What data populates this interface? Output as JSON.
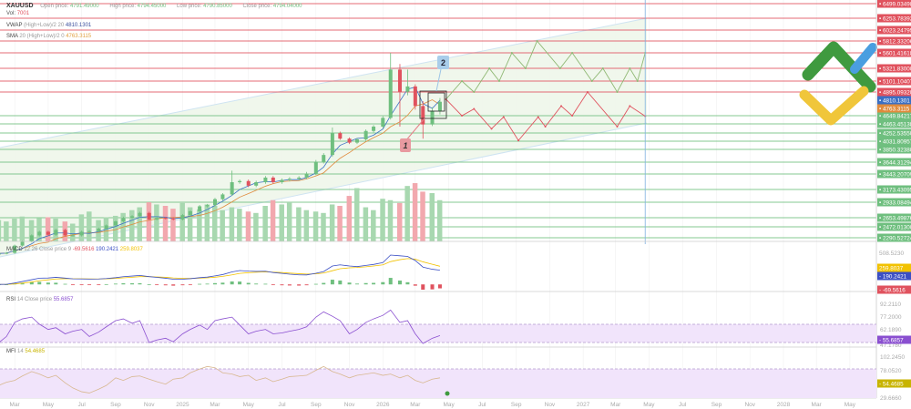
{
  "header": {
    "symbol": "XAUUSD",
    "open_label": "Open price:",
    "open": "4791.49000",
    "high_label": "High price:",
    "high": "4794.45000",
    "low_label": "Low price:",
    "low": "4790.85000",
    "close_label": "Close price:",
    "close": "4794.04000",
    "vol_label": "Vol:",
    "vol": "7001"
  },
  "indicators": {
    "vwap": {
      "name": "VWAP",
      "params": "(High+Low)/2 20",
      "value": "4810.1301",
      "color": "#3a6fc4"
    },
    "sma": {
      "name": "SMA",
      "params": "20 (High+Low)/2 0",
      "value": "4763.3115",
      "color": "#e08a3c"
    },
    "macd": {
      "name": "MACD",
      "params": "12 26 Close price 9",
      "hist": "-69.5616",
      "macd": "190.2421",
      "signal": "259.8037",
      "axis_top": "508.5230"
    },
    "rsi": {
      "name": "RSI",
      "params": "14 Close price",
      "value": "55.6857",
      "ticks": [
        "92.2110",
        "77.2000",
        "62.1890",
        "47.1780"
      ]
    },
    "mfi": {
      "name": "MFI",
      "params": "14",
      "value": "54.4685",
      "ticks": [
        "102.2450",
        "78.0520",
        "29.6660"
      ]
    }
  },
  "colors": {
    "up": "#6fbf7f",
    "down": "#e0525e",
    "resistance": "#e0525e",
    "support": "#6fbf7f",
    "vwap": "#3a6fc4",
    "sma": "#e08a3c",
    "rsi": "#8a4fd0",
    "mfi": "#c8b400",
    "macd": "#3b4fc4",
    "signal": "#f2c200"
  },
  "levels": [
    {
      "price": "6499.03498",
      "type": "resistance"
    },
    {
      "price": "6253.78392",
      "type": "resistance"
    },
    {
      "price": "6023.24795",
      "type": "resistance"
    },
    {
      "price": "5812.33206",
      "type": "resistance"
    },
    {
      "price": "5601.41618",
      "type": "resistance"
    },
    {
      "price": "5321.83000",
      "type": "resistance"
    },
    {
      "price": "5101.10407",
      "type": "resistance"
    },
    {
      "price": "4895.09320",
      "type": "resistance"
    },
    {
      "price": "4649.84217",
      "type": "support"
    },
    {
      "price": "4463.45138",
      "type": "support"
    },
    {
      "price": "4252.53550",
      "type": "support"
    },
    {
      "price": "4031.80957",
      "type": "support"
    },
    {
      "price": "3850.32380",
      "type": "support"
    },
    {
      "price": "3644.31294",
      "type": "support"
    },
    {
      "price": "3443.20709",
      "type": "support"
    },
    {
      "price": "3173.43095",
      "type": "support"
    },
    {
      "price": "2933.08494",
      "type": "support"
    },
    {
      "price": "2653.49876",
      "type": "support"
    },
    {
      "price": "2472.01300",
      "type": "support"
    },
    {
      "price": "2290.52724",
      "type": "support"
    }
  ],
  "annotations": {
    "label_1": "1",
    "label_2": "2"
  },
  "chart_data": {
    "type": "candlestick",
    "symbol": "XAUUSD",
    "x_ticks": [
      "Mar",
      "May",
      "Jul",
      "Sep",
      "Nov",
      "2025",
      "Mar",
      "May",
      "Jul",
      "Sep",
      "Nov",
      "2026",
      "Mar",
      "May",
      "Jul",
      "Sep",
      "Nov",
      "2027",
      "Mar",
      "May",
      "Jul",
      "Sep",
      "Nov",
      "2028",
      "Mar",
      "May"
    ],
    "x_tick_dates": [
      "2024-03-01",
      "2024-05-01",
      "2024-07-01",
      "2024-09-01",
      "2024-11-01",
      "2025-01-01",
      "2025-03-01",
      "2025-05-01",
      "2025-07-01",
      "2025-09-01",
      "2025-11-01",
      "2026-01-01",
      "2026-03-01",
      "2026-05-01",
      "2026-07-01",
      "2026-09-01",
      "2026-11-01",
      "2027-01-01",
      "2027-03-01",
      "2027-05-01",
      "2027-07-01",
      "2027-09-01",
      "2027-11-01",
      "2028-01-01",
      "2028-03-01",
      "2028-05-01"
    ],
    "candles": [
      [
        "2024-02-01",
        2030
      ],
      [
        "2024-02-15",
        2040
      ],
      [
        "2024-03-01",
        2160
      ],
      [
        "2024-03-15",
        2230
      ],
      [
        "2024-04-01",
        2330
      ],
      [
        "2024-04-15",
        2390
      ],
      [
        "2024-05-01",
        2340
      ],
      [
        "2024-05-15",
        2420
      ],
      [
        "2024-06-01",
        2330
      ],
      [
        "2024-06-15",
        2330
      ],
      [
        "2024-07-01",
        2390
      ],
      [
        "2024-07-15",
        2400
      ],
      [
        "2024-08-01",
        2440
      ],
      [
        "2024-08-15",
        2500
      ],
      [
        "2024-09-01",
        2580
      ],
      [
        "2024-09-15",
        2650
      ],
      [
        "2024-10-01",
        2680
      ],
      [
        "2024-10-15",
        2740
      ],
      [
        "2024-11-01",
        2620
      ],
      [
        "2024-11-15",
        2650
      ],
      [
        "2024-12-01",
        2640
      ],
      [
        "2024-12-15",
        2620
      ],
      [
        "2025-01-01",
        2700
      ],
      [
        "2025-01-15",
        2770
      ],
      [
        "2025-02-01",
        2860
      ],
      [
        "2025-02-15",
        2880
      ],
      [
        "2025-03-01",
        2990
      ],
      [
        "2025-03-15",
        3080
      ],
      [
        "2025-04-01",
        3300,
        3500
      ],
      [
        "2025-04-15",
        3320
      ],
      [
        "2025-05-01",
        3240
      ],
      [
        "2025-05-15",
        3300
      ],
      [
        "2025-06-01",
        3380
      ],
      [
        "2025-06-15",
        3300
      ],
      [
        "2025-07-01",
        3340
      ],
      [
        "2025-07-15",
        3360
      ],
      [
        "2025-08-01",
        3380
      ],
      [
        "2025-08-15",
        3450
      ],
      [
        "2025-09-01",
        3650
      ],
      [
        "2025-09-15",
        3760
      ],
      [
        "2025-10-01",
        4250,
        4380
      ],
      [
        "2025-10-15",
        4100
      ],
      [
        "2025-11-01",
        4000
      ],
      [
        "2025-11-15",
        4080
      ],
      [
        "2025-12-01",
        4300
      ],
      [
        "2025-12-15",
        4400
      ],
      [
        "2026-01-01",
        4600
      ],
      [
        "2026-01-15",
        5300,
        5600
      ],
      [
        "2026-02-01",
        4900,
        5400,
        4400
      ],
      [
        "2026-02-15",
        5000,
        5300
      ],
      [
        "2026-03-01",
        4750
      ],
      [
        "2026-03-15",
        4450,
        4800,
        4100
      ],
      [
        "2026-04-01",
        4700
      ],
      [
        "2026-04-15",
        4794
      ]
    ],
    "volume": [
      30,
      28,
      32,
      35,
      30,
      33,
      34,
      32,
      28,
      25,
      38,
      42,
      30,
      34,
      36,
      40,
      44,
      48,
      55,
      52,
      50,
      46,
      54,
      48,
      45,
      52,
      50,
      44,
      48,
      46,
      42,
      40,
      50,
      58,
      52,
      56,
      48,
      44,
      42,
      40,
      52,
      50,
      64,
      75,
      48,
      44,
      60,
      58,
      54,
      78,
      82,
      70,
      68,
      58,
      60,
      20
    ],
    "vwap_last": 4810.1301,
    "sma_last": 4763.3115,
    "rsi": [
      45,
      52,
      68,
      72,
      74,
      66,
      60,
      62,
      55,
      58,
      60,
      52,
      57,
      63,
      70,
      72,
      67,
      70,
      45,
      48,
      50,
      46,
      55,
      60,
      65,
      60,
      70,
      72,
      74,
      65,
      55,
      58,
      60,
      55,
      56,
      58,
      60,
      63,
      74,
      80,
      75,
      70,
      55,
      60,
      68,
      72,
      76,
      82,
      68,
      70,
      55,
      44,
      50,
      53,
      55,
      55.6857
    ],
    "mfi": [
      40,
      45,
      48,
      55,
      62,
      58,
      52,
      56,
      44,
      36,
      30,
      28,
      34,
      40,
      52,
      48,
      54,
      55,
      50,
      46,
      42,
      50,
      52,
      60,
      66,
      70,
      68,
      60,
      58,
      54,
      56,
      48,
      52,
      46,
      50,
      54,
      55,
      56,
      64,
      70,
      62,
      58,
      52,
      56,
      58,
      60,
      56,
      58,
      52,
      56,
      48,
      44,
      50,
      52,
      54,
      54.4685
    ],
    "forecast_bullish": [
      [
        "2026-04-26",
        4820
      ],
      [
        "2026-05-25",
        5101
      ],
      [
        "2026-06-16",
        4895
      ],
      [
        "2026-07-14",
        5321
      ],
      [
        "2026-08-01",
        5101
      ],
      [
        "2026-08-24",
        5601
      ],
      [
        "2026-09-18",
        5321
      ],
      [
        "2026-10-09",
        5812
      ],
      [
        "2026-11-20",
        5321
      ],
      [
        "2026-12-12",
        5601
      ],
      [
        "2027-01-17",
        5101
      ],
      [
        "2027-02-06",
        5321
      ],
      [
        "2027-03-04",
        4895
      ],
      [
        "2027-03-27",
        5321
      ],
      [
        "2027-04-10",
        5101
      ],
      [
        "2027-04-24",
        5601
      ]
    ],
    "forecast_bearish": [
      [
        "2026-04-26",
        4820
      ],
      [
        "2026-05-25",
        4649
      ],
      [
        "2026-06-16",
        4720
      ],
      [
        "2026-07-18",
        4350
      ],
      [
        "2026-08-09",
        4620
      ],
      [
        "2026-09-05",
        4050
      ],
      [
        "2026-10-11",
        4620
      ],
      [
        "2026-10-24",
        4400
      ],
      [
        "2026-11-22",
        4750
      ],
      [
        "2026-12-12",
        4649
      ],
      [
        "2027-01-09",
        4895
      ],
      [
        "2027-03-04",
        4400
      ],
      [
        "2027-03-27",
        4750
      ],
      [
        "2027-04-24",
        4640
      ]
    ],
    "forecast_end_date": "2027-04-24",
    "grid": true
  }
}
